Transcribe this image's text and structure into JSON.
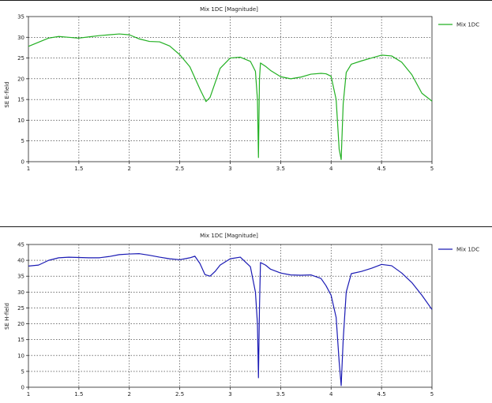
{
  "colors": {
    "series_top": "#22b022",
    "series_bottom": "#1a1ab4",
    "grid": "#222222",
    "axis": "#222222"
  },
  "chart_data": [
    {
      "type": "line",
      "title": "Mix 1DC [Magnitude]",
      "xlabel": "",
      "ylabel": "SE E-field",
      "xlim": [
        1,
        5
      ],
      "ylim": [
        0,
        35
      ],
      "xticks": [
        1,
        1.5,
        2,
        2.5,
        3,
        3.5,
        4,
        4.5,
        5
      ],
      "yticks": [
        0,
        5,
        10,
        15,
        20,
        25,
        30,
        35
      ],
      "grid": true,
      "legend": "top-right",
      "series": [
        {
          "name": "Mix 1DC",
          "x": [
            1,
            1.1,
            1.2,
            1.3,
            1.4,
            1.5,
            1.6,
            1.7,
            1.8,
            1.9,
            2.0,
            2.1,
            2.2,
            2.3,
            2.4,
            2.5,
            2.6,
            2.7,
            2.76,
            2.8,
            2.9,
            3.0,
            3.1,
            3.2,
            3.25,
            3.27,
            3.28,
            3.29,
            3.3,
            3.35,
            3.4,
            3.5,
            3.6,
            3.7,
            3.8,
            3.9,
            3.95,
            4.0,
            4.05,
            4.08,
            4.1,
            4.12,
            4.15,
            4.2,
            4.3,
            4.4,
            4.5,
            4.6,
            4.7,
            4.8,
            4.9,
            5.0
          ],
          "y": [
            27.8,
            28.8,
            29.8,
            30.2,
            30.0,
            29.8,
            30.1,
            30.4,
            30.6,
            30.8,
            30.6,
            29.6,
            29.0,
            28.9,
            27.9,
            25.8,
            22.9,
            17.5,
            14.5,
            15.5,
            22.5,
            25.0,
            25.2,
            24.2,
            21.8,
            15.0,
            1.0,
            20.0,
            23.8,
            23.0,
            22.0,
            20.5,
            20.0,
            20.4,
            21.1,
            21.3,
            21.2,
            20.6,
            15.0,
            3.0,
            0.5,
            14.0,
            21.5,
            23.5,
            24.3,
            25.0,
            25.7,
            25.5,
            24.0,
            21.0,
            16.5,
            14.6
          ]
        }
      ]
    },
    {
      "type": "line",
      "title": "Mix 1DC [Magnitude]",
      "xlabel": "",
      "ylabel": "SE H-field",
      "xlim": [
        1,
        5
      ],
      "ylim": [
        0,
        45
      ],
      "xticks": [
        1,
        1.5,
        2,
        2.5,
        3,
        3.5,
        4,
        4.5,
        5
      ],
      "yticks": [
        0,
        5,
        10,
        15,
        20,
        25,
        30,
        35,
        40,
        45
      ],
      "grid": true,
      "legend": "top-right",
      "series": [
        {
          "name": "Mix 1DC",
          "x": [
            1,
            1.1,
            1.2,
            1.3,
            1.4,
            1.5,
            1.6,
            1.7,
            1.8,
            1.9,
            2.0,
            2.1,
            2.2,
            2.3,
            2.4,
            2.5,
            2.6,
            2.65,
            2.7,
            2.75,
            2.8,
            2.85,
            2.9,
            3.0,
            3.1,
            3.2,
            3.25,
            3.27,
            3.28,
            3.29,
            3.3,
            3.35,
            3.4,
            3.5,
            3.6,
            3.7,
            3.8,
            3.9,
            3.95,
            4.0,
            4.05,
            4.08,
            4.1,
            4.12,
            4.15,
            4.2,
            4.3,
            4.4,
            4.5,
            4.6,
            4.7,
            4.8,
            4.9,
            5.0
          ],
          "y": [
            38.2,
            38.5,
            40.0,
            40.8,
            41.0,
            40.9,
            40.8,
            40.8,
            41.2,
            41.8,
            42.0,
            42.1,
            41.6,
            41.0,
            40.5,
            40.2,
            40.8,
            41.3,
            39.0,
            35.5,
            35.0,
            36.5,
            38.5,
            40.5,
            41.0,
            38.0,
            30.0,
            20.0,
            3.0,
            25.0,
            39.3,
            38.5,
            37.2,
            36.0,
            35.4,
            35.3,
            35.4,
            34.3,
            32.0,
            29.0,
            22.0,
            8.0,
            0.5,
            15.0,
            30.0,
            35.8,
            36.5,
            37.5,
            38.7,
            38.3,
            36.0,
            33.0,
            29.0,
            24.5
          ]
        }
      ]
    }
  ]
}
